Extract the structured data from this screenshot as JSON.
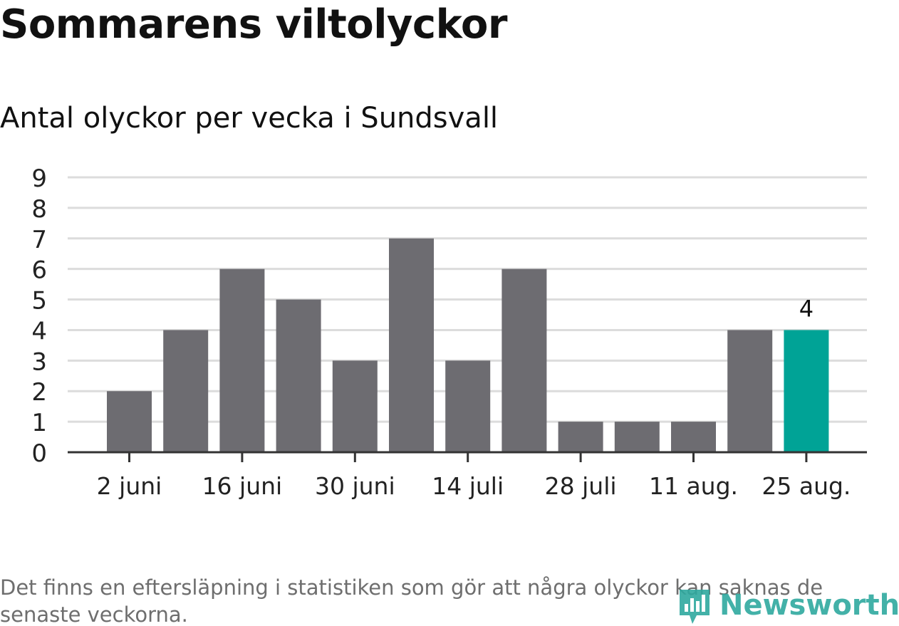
{
  "title": "Sommarens viltolyckor",
  "subtitle": "Antal olyckor per vecka i Sundsvall",
  "footnote": "Det finns en eftersläpning i statistiken som gör att några olyckor kan saknas de senaste veckorna.",
  "logo": {
    "text": "Newsworthy",
    "icon": "bar-chart-speech-bubble-icon",
    "color": "#2fa99f"
  },
  "chart_data": {
    "type": "bar",
    "x_tick_labels": [
      "2 juni",
      "16 juni",
      "30 juni",
      "14 juli",
      "28 juli",
      "11 aug.",
      "25 aug."
    ],
    "y_ticks": [
      "0",
      "1",
      "2",
      "3",
      "4",
      "5",
      "6",
      "7",
      "8",
      "9"
    ],
    "values": [
      2,
      4,
      6,
      5,
      3,
      7,
      3,
      6,
      1,
      1,
      1,
      4,
      4
    ],
    "highlight_index": 12,
    "highlight_label": "4",
    "ylim": [
      0,
      9
    ],
    "grid": true,
    "colors": {
      "bar": "#6d6c71",
      "highlight": "#00a396",
      "grid": "#dcdcdc",
      "axis": "#333333"
    }
  }
}
